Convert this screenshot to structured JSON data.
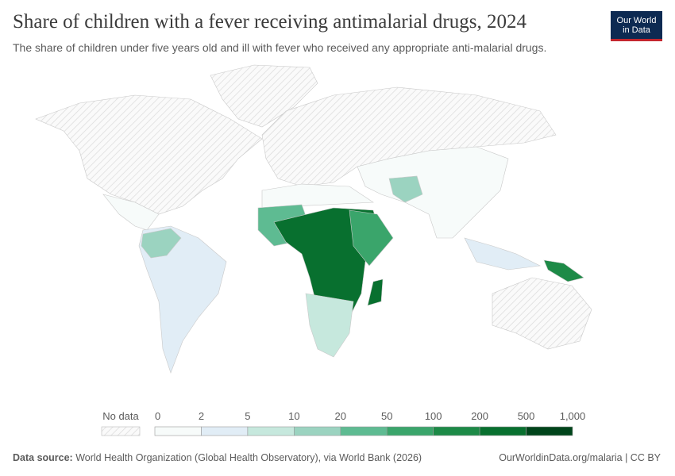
{
  "header": {
    "title": "Share of children with a fever receiving antimalarial drugs, 2024",
    "subtitle": "The share of children under five years old and ill with fever who received any appropriate anti-malarial drugs."
  },
  "logo": {
    "line1": "Our World",
    "line2": "in Data"
  },
  "legend": {
    "no_data": "No data",
    "ticks": [
      0,
      2,
      5,
      10,
      20,
      50,
      100,
      200,
      500,
      {
        "value": 1000,
        "label": "1,000"
      }
    ],
    "colors": [
      "#f7fbfa",
      "#e1edf6",
      "#c6e8dd",
      "#9bd3c0",
      "#5ebb92",
      "#3aa56b",
      "#1d8a47",
      "#08702f",
      "#00441b"
    ]
  },
  "footer": {
    "source_label": "Data source:",
    "source": "World Health Organization (Global Health Observatory), via World Bank (2026)",
    "url": "OurWorldinData.org/malaria | CC BY"
  }
}
